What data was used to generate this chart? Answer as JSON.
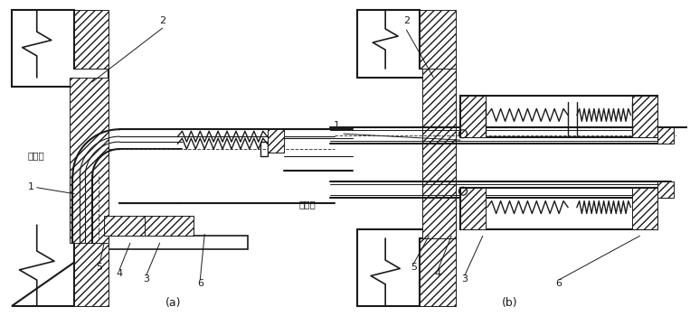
{
  "fig_width": 7.63,
  "fig_height": 3.5,
  "dpi": 100,
  "bg_color": "#ffffff",
  "line_color": "#1a1a1a",
  "label_a": "(a)",
  "label_b": "(b)",
  "text_furnace_a": "炉体内",
  "text_furnace_b": "炉体内"
}
